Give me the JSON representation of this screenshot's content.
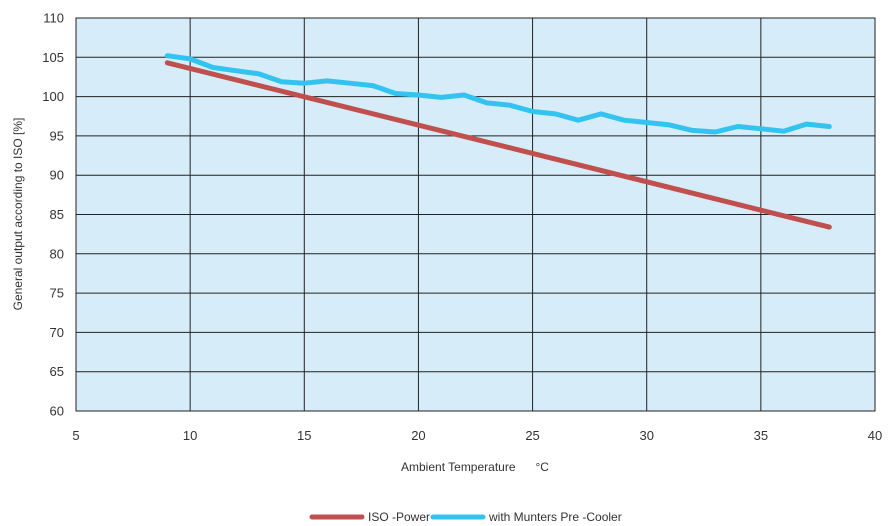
{
  "chart_data": {
    "type": "line",
    "xlabel": "Ambient Temperature      °C",
    "ylabel": "General output according to ISO [%]",
    "xlim": [
      5,
      40
    ],
    "ylim": [
      60,
      110
    ],
    "x_ticks": [
      5,
      10,
      15,
      20,
      25,
      30,
      35,
      40
    ],
    "y_ticks": [
      60,
      65,
      70,
      75,
      80,
      85,
      90,
      95,
      100,
      105,
      110
    ],
    "grid": true,
    "legend_position": "bottom-center",
    "plot_background": "#d6ecf8",
    "series": [
      {
        "name": "ISO -Power",
        "color": "#c0504d",
        "x": [
          9,
          38
        ],
        "y": [
          104.3,
          83.4
        ]
      },
      {
        "name": "with Munters Pre    -Cooler",
        "color": "#33c3f0",
        "x": [
          9,
          10,
          11,
          12,
          13,
          14,
          15,
          16,
          17,
          18,
          19,
          20,
          21,
          22,
          23,
          24,
          25,
          26,
          27,
          28,
          29,
          30,
          31,
          32,
          33,
          34,
          35,
          36,
          37,
          38
        ],
        "y": [
          105.2,
          104.8,
          103.7,
          103.3,
          102.9,
          101.9,
          101.7,
          102.0,
          101.7,
          101.4,
          100.4,
          100.2,
          99.9,
          100.2,
          99.2,
          98.9,
          98.1,
          97.8,
          97.0,
          97.8,
          97.0,
          96.7,
          96.4,
          95.7,
          95.5,
          96.2,
          95.9,
          95.6,
          96.5,
          96.2
        ]
      }
    ]
  }
}
